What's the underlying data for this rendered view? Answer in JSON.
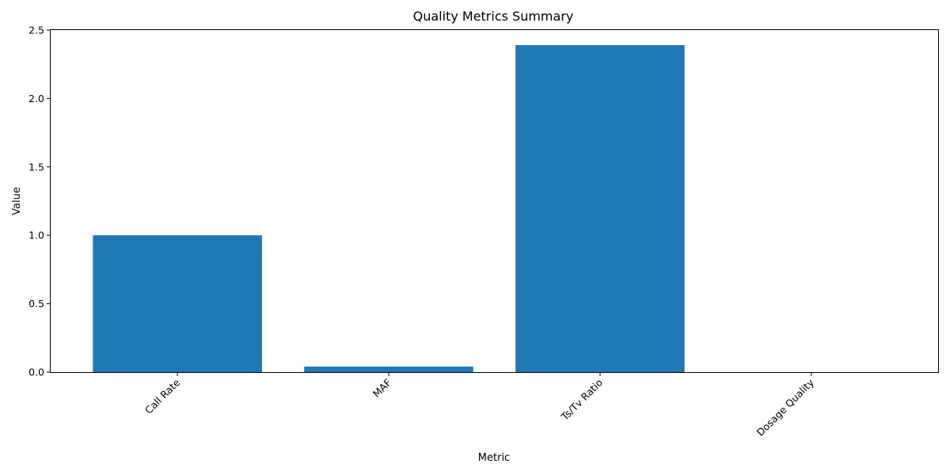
{
  "chart_data": {
    "type": "bar",
    "title": "Quality Metrics Summary",
    "xlabel": "Metric",
    "ylabel": "Value",
    "categories": [
      "Call Rate",
      "MAF",
      "Ts/Tv Ratio",
      "Dosage Quality"
    ],
    "values": [
      1.0,
      0.04,
      2.39,
      0.0
    ],
    "ylim": [
      0,
      2.5
    ],
    "yticks": [
      0.0,
      0.5,
      1.0,
      1.5,
      2.0,
      2.5
    ],
    "ytick_labels": [
      "0.0",
      "0.5",
      "1.0",
      "1.5",
      "2.0",
      "2.5"
    ],
    "bar_color": "#1f77b4",
    "grid": false,
    "legend": false
  }
}
